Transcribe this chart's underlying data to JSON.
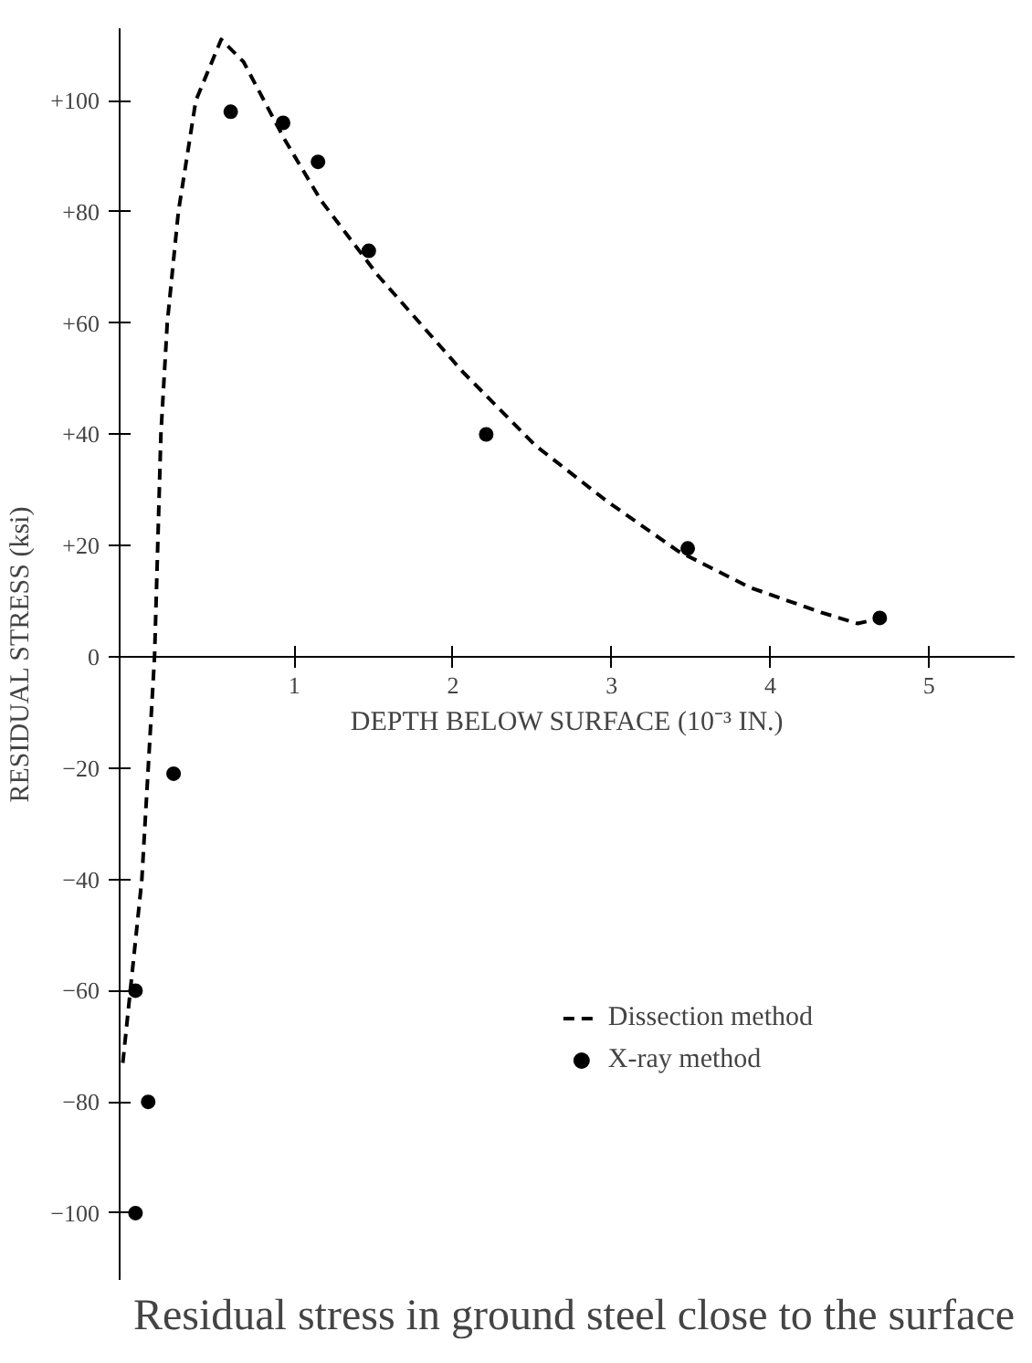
{
  "chart_data": {
    "type": "line",
    "xlabel": "DEPTH BELOW SURFACE (10⁻³ IN.)",
    "ylabel": "RESIDUAL STRESS (ksi)",
    "annotations": [
      "Residual stress in ground steel close to the surface"
    ],
    "series": [
      {
        "name": "Dissection method",
        "type": "line",
        "color": "#000000",
        "line_style": "dashed",
        "marker": "none",
        "x": [
          -0.08,
          0.04,
          0.12,
          0.16,
          0.2,
          0.27,
          0.38,
          0.54,
          0.68,
          0.94,
          1.17,
          1.53,
          2.07,
          2.52,
          2.97,
          3.42,
          3.87,
          4.32,
          4.55,
          4.63
        ],
        "values": [
          -73,
          -40,
          0,
          40,
          60,
          80,
          100,
          111,
          107,
          93,
          82,
          68.5,
          51,
          38,
          28,
          19,
          12.5,
          8,
          6,
          6.5
        ]
      },
      {
        "name": "X-ray method",
        "type": "scatter",
        "color": "#000000",
        "marker": "circle",
        "x": [
          0.0,
          0.0,
          0.08,
          0.24,
          0.6,
          0.93,
          1.15,
          1.47,
          2.21,
          3.48,
          4.69
        ],
        "values": [
          -100,
          -60,
          -80,
          -21,
          98,
          96,
          89,
          73,
          40,
          19.5,
          7
        ]
      }
    ],
    "xlim": [
      -0.1,
      5.54
    ],
    "ylim": [
      -112,
      113
    ],
    "xticks": [
      1,
      2,
      3,
      4,
      5
    ],
    "yticks": [
      {
        "value": 100,
        "label": "+100"
      },
      {
        "value": 80,
        "label": "+80"
      },
      {
        "value": 60,
        "label": "+60"
      },
      {
        "value": 40,
        "label": "+40"
      },
      {
        "value": 20,
        "label": "+20"
      },
      0,
      {
        "value": -20,
        "label": "−20"
      },
      {
        "value": -40,
        "label": "−40"
      },
      {
        "value": -60,
        "label": "−60"
      },
      {
        "value": -80,
        "label": "−80"
      },
      {
        "value": -100,
        "label": "−100"
      }
    ],
    "grid": false,
    "legend": "bottom right"
  }
}
